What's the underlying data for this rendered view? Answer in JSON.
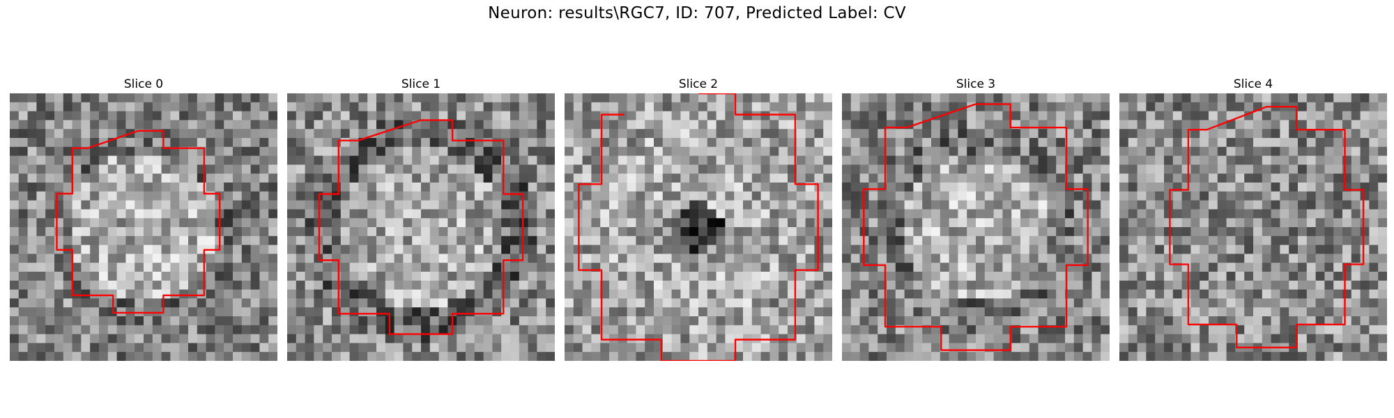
{
  "figure": {
    "suptitle": "Neuron: results\\RGC7, ID: 707, Predicted Label: CV",
    "contour_color": "#ff0000",
    "colormap": "gray",
    "panels": [
      {
        "title": "Slice 0",
        "seed": 11,
        "pattern": "bright-disk",
        "contour": "small"
      },
      {
        "title": "Slice 1",
        "seed": 23,
        "pattern": "dark-ring",
        "contour": "medium"
      },
      {
        "title": "Slice 2",
        "seed": 37,
        "pattern": "dark-center",
        "contour": "large-open"
      },
      {
        "title": "Slice 3",
        "seed": 51,
        "pattern": "bright-disk",
        "contour": "large"
      },
      {
        "title": "Slice 4",
        "seed": 67,
        "pattern": "noise",
        "contour": "large"
      }
    ]
  }
}
